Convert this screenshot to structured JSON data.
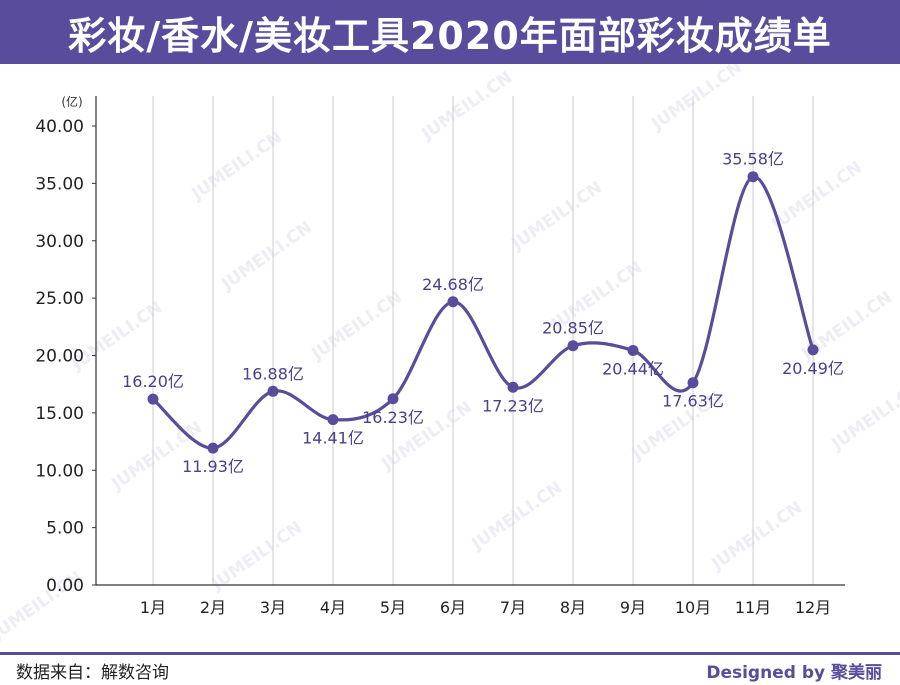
{
  "title": "彩妆/香水/美妆工具2020年面部彩妆成绩单",
  "footer": {
    "source": "数据来自：解数咨询",
    "credit": "Designed by 聚美丽"
  },
  "watermark": "JUMEILI.CN",
  "colors": {
    "accent": "#5a4c9d",
    "line": "#5a4c9d",
    "grid": "#cccccc",
    "label": "#4a3f8a"
  },
  "chart_data": {
    "type": "line",
    "unit_label": "(亿)",
    "categories": [
      "1月",
      "2月",
      "3月",
      "4月",
      "5月",
      "6月",
      "7月",
      "8月",
      "9月",
      "10月",
      "11月",
      "12月"
    ],
    "values": [
      16.2,
      11.93,
      16.88,
      14.41,
      16.23,
      24.68,
      17.23,
      20.85,
      20.44,
      17.63,
      35.58,
      20.49
    ],
    "data_labels": [
      "16.20亿",
      "11.93亿",
      "16.88亿",
      "14.41亿",
      "16.23亿",
      "24.68亿",
      "17.23亿",
      "20.85亿",
      "20.44亿",
      "17.63亿",
      "35.58亿",
      "20.49亿"
    ],
    "label_positions": [
      "above",
      "below",
      "above",
      "below",
      "below",
      "above",
      "below",
      "above",
      "below",
      "below",
      "above",
      "below"
    ],
    "yticks": [
      "0.00",
      "5.00",
      "10.00",
      "15.00",
      "20.00",
      "25.00",
      "30.00",
      "35.00",
      "40.00"
    ],
    "ylim": [
      0,
      40
    ],
    "xlabel": "",
    "ylabel": "",
    "grid": "vertical"
  }
}
